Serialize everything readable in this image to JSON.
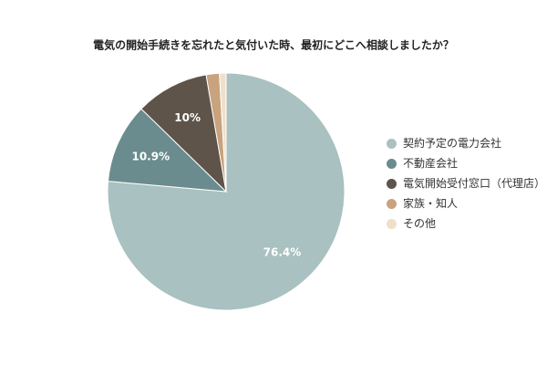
{
  "chart_data": {
    "type": "pie",
    "title": "電気の開始手続きを忘れたと気付いた時、最初にどこへ相談しましたか？",
    "categories": [
      "契約予定の電力会社",
      "不動産会社",
      "電気開始受付窓口（代理店）",
      "家族・知人",
      "その他"
    ],
    "values": [
      76.4,
      10.9,
      10,
      1.8,
      0.9
    ],
    "value_labels": [
      "76.4%",
      "10.9%",
      "10%",
      null,
      null
    ],
    "colors": [
      "#a9c1c0",
      "#6b8c8f",
      "#5f544a",
      "#c9a27e",
      "#f0dfc8"
    ],
    "legend": "right"
  }
}
